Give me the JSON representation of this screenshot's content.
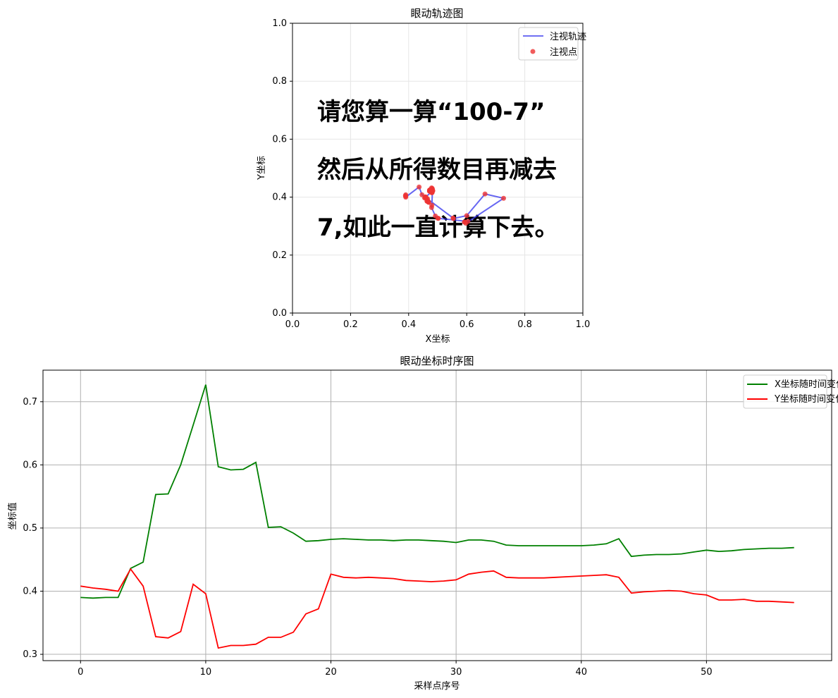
{
  "charts": [
    {
      "title": "眼动轨迹图",
      "xlabel": "X坐标",
      "ylabel": "Y坐标",
      "legend": {
        "line": "注视轨迹",
        "points": "注视点"
      },
      "overlay_text": [
        "请您算一算“100-7”",
        "然后从所得数目再减去",
        "7,如此一直计算下去。"
      ],
      "x_ticks": [
        "0.0",
        "0.2",
        "0.4",
        "0.6",
        "0.8",
        "1.0"
      ],
      "y_ticks": [
        "0.0",
        "0.2",
        "0.4",
        "0.6",
        "0.8",
        "1.0"
      ]
    },
    {
      "title": "眼动坐标时序图",
      "xlabel": "采样点序号",
      "ylabel": "坐标值",
      "legend": {
        "x": "X坐标随时间变化",
        "y": "Y坐标随时间变化"
      },
      "x_ticks": [
        "0",
        "10",
        "20",
        "30",
        "40",
        "50"
      ],
      "y_ticks": [
        "0.3",
        "0.4",
        "0.5",
        "0.6",
        "0.7"
      ]
    }
  ],
  "chart_data": [
    {
      "type": "scatter",
      "title": "眼动轨迹图",
      "xlabel": "X坐标",
      "ylabel": "Y坐标",
      "xlim": [
        0,
        1
      ],
      "ylim": [
        0,
        1
      ],
      "grid": true,
      "legend_position": "top-right",
      "series": [
        {
          "name": "注视轨迹",
          "kind": "line",
          "color": "#3333ee"
        },
        {
          "name": "注视点",
          "kind": "scatter",
          "color": "#ee3333"
        }
      ],
      "x": [
        0.39,
        0.389,
        0.39,
        0.39,
        0.436,
        0.446,
        0.553,
        0.554,
        0.6,
        0.663,
        0.727,
        0.597,
        0.592,
        0.593,
        0.604,
        0.501,
        0.502,
        0.492,
        0.479,
        0.48,
        0.482,
        0.483,
        0.482,
        0.481,
        0.481,
        0.48,
        0.481,
        0.481,
        0.48,
        0.479,
        0.477,
        0.481,
        0.481,
        0.479,
        0.473,
        0.472,
        0.472,
        0.472,
        0.472,
        0.472,
        0.472,
        0.473,
        0.475,
        0.483,
        0.455,
        0.457,
        0.458,
        0.458,
        0.459,
        0.462,
        0.465,
        0.463,
        0.464,
        0.466,
        0.467,
        0.468,
        0.468,
        0.469
      ],
      "y": [
        0.408,
        0.405,
        0.403,
        0.4,
        0.435,
        0.408,
        0.328,
        0.326,
        0.336,
        0.411,
        0.396,
        0.31,
        0.314,
        0.314,
        0.316,
        0.327,
        0.327,
        0.335,
        0.364,
        0.372,
        0.427,
        0.422,
        0.421,
        0.422,
        0.421,
        0.42,
        0.417,
        0.416,
        0.415,
        0.416,
        0.418,
        0.427,
        0.43,
        0.432,
        0.422,
        0.421,
        0.421,
        0.421,
        0.422,
        0.423,
        0.424,
        0.425,
        0.426,
        0.422,
        0.397,
        0.399,
        0.4,
        0.401,
        0.4,
        0.396,
        0.394,
        0.386,
        0.386,
        0.387,
        0.384,
        0.384,
        0.383,
        0.382
      ],
      "overlay_text": [
        "请您算一算“100-7”",
        "然后从所得数目再减去",
        "7,如此一直计算下去。"
      ]
    },
    {
      "type": "line",
      "title": "眼动坐标时序图",
      "xlabel": "采样点序号",
      "ylabel": "坐标值",
      "xlim": [
        -3,
        60
      ],
      "ylim": [
        0.29,
        0.75
      ],
      "grid": true,
      "legend_position": "top-right",
      "series": [
        {
          "name": "X坐标随时间变化",
          "color": "#008000",
          "values": [
            0.39,
            0.389,
            0.39,
            0.39,
            0.436,
            0.446,
            0.553,
            0.554,
            0.6,
            0.663,
            0.727,
            0.597,
            0.592,
            0.593,
            0.604,
            0.501,
            0.502,
            0.492,
            0.479,
            0.48,
            0.482,
            0.483,
            0.482,
            0.481,
            0.481,
            0.48,
            0.481,
            0.481,
            0.48,
            0.479,
            0.477,
            0.481,
            0.481,
            0.479,
            0.473,
            0.472,
            0.472,
            0.472,
            0.472,
            0.472,
            0.472,
            0.473,
            0.475,
            0.483,
            0.455,
            0.457,
            0.458,
            0.458,
            0.459,
            0.462,
            0.465,
            0.463,
            0.464,
            0.466,
            0.467,
            0.468,
            0.468,
            0.469
          ]
        },
        {
          "name": "Y坐标随时间变化",
          "color": "#ff0000",
          "values": [
            0.408,
            0.405,
            0.403,
            0.4,
            0.435,
            0.408,
            0.328,
            0.326,
            0.336,
            0.411,
            0.396,
            0.31,
            0.314,
            0.314,
            0.316,
            0.327,
            0.327,
            0.335,
            0.364,
            0.372,
            0.427,
            0.422,
            0.421,
            0.422,
            0.421,
            0.42,
            0.417,
            0.416,
            0.415,
            0.416,
            0.418,
            0.427,
            0.43,
            0.432,
            0.422,
            0.421,
            0.421,
            0.421,
            0.422,
            0.423,
            0.424,
            0.425,
            0.426,
            0.422,
            0.397,
            0.399,
            0.4,
            0.401,
            0.4,
            0.396,
            0.394,
            0.386,
            0.386,
            0.387,
            0.384,
            0.384,
            0.383,
            0.382
          ]
        }
      ]
    }
  ]
}
